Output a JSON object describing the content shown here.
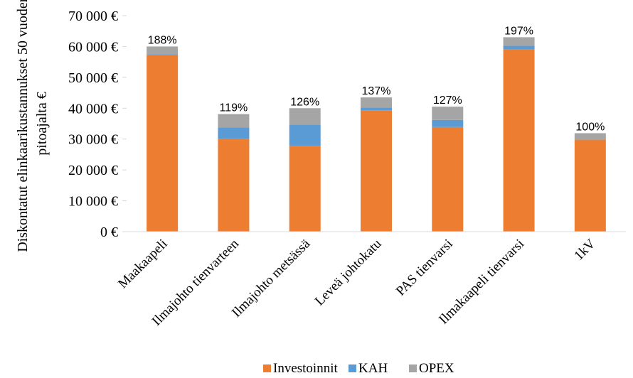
{
  "chart_data": {
    "type": "bar",
    "stacked": true,
    "categories": [
      "Maakaapeli",
      "Ilmajohto tienvarteen",
      "Ilmajohto metsässä",
      "Leveä johtokatu",
      "PAS tienvarsi",
      "Ilmakaapeli tienvarsi",
      "1kV"
    ],
    "series": [
      {
        "name": "Investoinnit",
        "color": "#ED7D31",
        "values": [
          57200,
          30000,
          27800,
          39300,
          33900,
          59000,
          29800
        ]
      },
      {
        "name": "KAH",
        "color": "#5B9BD5",
        "values": [
          300,
          3800,
          6900,
          900,
          2300,
          1200,
          0
        ]
      },
      {
        "name": "OPEX",
        "color": "#A5A5A5",
        "values": [
          2500,
          4300,
          5300,
          3300,
          4300,
          2800,
          2100
        ]
      }
    ],
    "data_labels": [
      "188%",
      "119%",
      "126%",
      "137%",
      "127%",
      "197%",
      "100%"
    ],
    "ylabel": "Diskontatut elinkaarikustannukset 50 vuoden pitoajalta €",
    "ylabel_lines": [
      "Diskontatut elinkaarikustannukset 50 vuoden",
      "pitoajalta €"
    ],
    "yticks": [
      "0 €",
      "10 000 €",
      "20 000 €",
      "30 000 €",
      "40 000 €",
      "50 000 €",
      "60 000 €",
      "70 000 €"
    ],
    "ylim": [
      0,
      70000
    ],
    "grid": false,
    "legend_position": "bottom"
  }
}
